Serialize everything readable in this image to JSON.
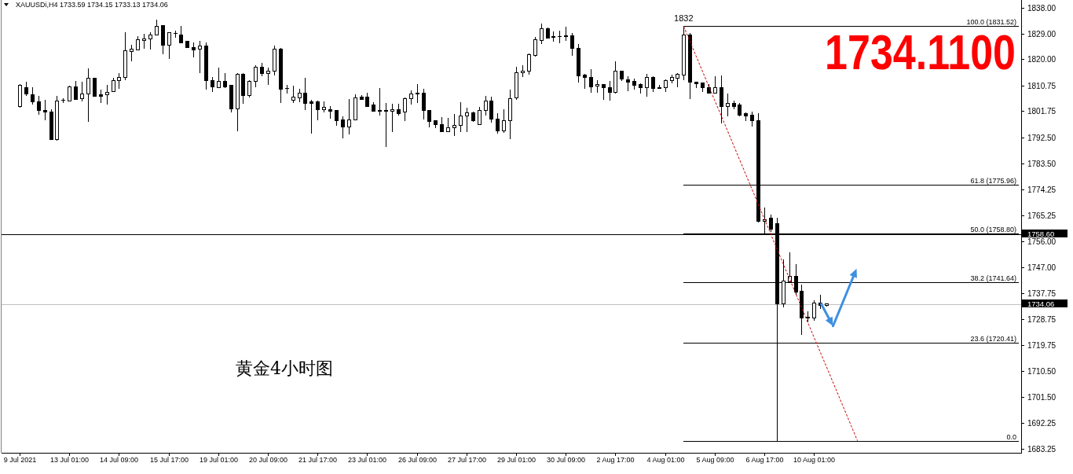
{
  "chart_data": {
    "type": "candlestick",
    "title": "XAUUSDi,H4 1733.59 1734.15 1733.13 1734.06",
    "annotations": [
      {
        "text": "1832",
        "y": 1831.52
      },
      "黄金4小时图",
      "1734.1100"
    ],
    "categories": [
      "9 Jul 2021",
      null,
      null,
      null,
      null,
      null,
      null,
      null,
      "13 Jul 01:00",
      null,
      null,
      null,
      null,
      null,
      null,
      null,
      "14 Jul 09:00",
      null,
      null,
      null,
      null,
      null,
      null,
      null,
      "15 Jul 17:00",
      null,
      null,
      null,
      null,
      null,
      null,
      null,
      "19 Jul 01:00",
      null,
      null,
      null,
      null,
      null,
      null,
      null,
      "20 Jul 09:00",
      null,
      null,
      null,
      null,
      null,
      null,
      null,
      "21 Jul 17:00",
      null,
      null,
      null,
      null,
      null,
      null,
      null,
      "23 Jul 01:00",
      null,
      null,
      null,
      null,
      null,
      null,
      null,
      "26 Jul 09:00",
      null,
      null,
      null,
      null,
      null,
      null,
      null,
      "27 Jul 17:00",
      null,
      null,
      null,
      null,
      null,
      null,
      null,
      "29 Jul 01:00",
      null,
      null,
      null,
      null,
      null,
      null,
      null,
      "30 Jul 09:00",
      null,
      null,
      null,
      null,
      null,
      null,
      null,
      "2 Aug 17:00",
      null,
      null,
      null,
      null,
      null,
      null,
      null,
      "4 Aug 01:00",
      null,
      null,
      null,
      null,
      null,
      null,
      null,
      "5 Aug 09:00",
      null,
      null,
      null,
      null,
      null,
      null,
      null,
      "6 Aug 17:00",
      null,
      null,
      null,
      null,
      null,
      null,
      null,
      "10 Aug 01:00",
      null,
      null,
      null,
      null,
      null,
      null,
      null,
      null,
      null,
      null,
      null,
      null,
      null,
      null,
      null,
      null,
      null,
      null,
      null,
      null,
      null,
      null,
      null,
      null,
      null,
      null,
      null,
      null,
      null,
      null,
      null,
      null,
      null
    ],
    "ylim": [
      1681.86,
      1840.76
    ],
    "yticks": [
      {
        "value": 1838,
        "label": "1838.00"
      },
      {
        "value": 1829,
        "label": "1829.00"
      },
      {
        "value": 1820,
        "label": "1820.00"
      },
      {
        "value": 1810.75,
        "label": "1810.75"
      },
      {
        "value": 1801.75,
        "label": "1801.75"
      },
      {
        "value": 1792.5,
        "label": "1792.50"
      },
      {
        "value": 1783.5,
        "label": "1783.50"
      },
      {
        "value": 1774.25,
        "label": "1774.25"
      },
      {
        "value": 1765.25,
        "label": "1765.25"
      },
      {
        "value": 1756,
        "label": "1756.00"
      },
      {
        "value": 1747,
        "label": "1747.00"
      },
      {
        "value": 1737.75,
        "label": "1737.75"
      },
      {
        "value": 1728.75,
        "label": "1728.75"
      },
      {
        "value": 1719.75,
        "label": "1719.75"
      },
      {
        "value": 1710.5,
        "label": "1710.50"
      },
      {
        "value": 1701.5,
        "label": "1701.50"
      },
      {
        "value": 1692.25,
        "label": "1692.25"
      },
      {
        "value": 1683.25,
        "label": "1683.25"
      }
    ],
    "ref_lines": [
      {
        "axis": "y",
        "value": 1758.6,
        "label": "1758.60",
        "color": "#000000"
      },
      {
        "axis": "y",
        "value": 1734.06,
        "label": "1734.06",
        "color": "#c0c0c0"
      }
    ],
    "series": [
      {
        "color": "#000000",
        "ohlc": [
          [
            1803.5,
            1811.3,
            1803.1,
            1810.9
          ],
          [
            1810.1,
            1812.0,
            1807.2,
            1807.9
          ],
          [
            1807.4,
            1810.2,
            1804.0,
            1805.1
          ],
          [
            1805.1,
            1807.0,
            1800.5,
            1802.1
          ],
          [
            1802.1,
            1805.8,
            1798.5,
            1801.4
          ],
          [
            1801.5,
            1802.3,
            1791.6,
            1791.7
          ],
          [
            1791.7,
            1807.0,
            1791.3,
            1805.4
          ],
          [
            1805.7,
            1806.3,
            1804.7,
            1805.5
          ],
          [
            1805.4,
            1810.8,
            1805.3,
            1810.4
          ],
          [
            1810.4,
            1812.4,
            1805.6,
            1806.0
          ],
          [
            1806.1,
            1812.1,
            1805.1,
            1807.9
          ],
          [
            1807.9,
            1816.7,
            1798.0,
            1813.4
          ],
          [
            1813.4,
            1813.5,
            1806.8,
            1806.9
          ],
          [
            1807.4,
            1809.3,
            1804.7,
            1806.9
          ],
          [
            1807.5,
            1810.9,
            1804.2,
            1808.4
          ],
          [
            1808.6,
            1813.4,
            1808.4,
            1812.5
          ],
          [
            1812.4,
            1815.0,
            1809.5,
            1813.6
          ],
          [
            1813.5,
            1829.5,
            1812.7,
            1823.1
          ],
          [
            1822.8,
            1825.0,
            1819.2,
            1823.5
          ],
          [
            1823.3,
            1828.1,
            1823.3,
            1826.9
          ],
          [
            1826.5,
            1828.8,
            1823.7,
            1827.2
          ],
          [
            1827.2,
            1829.5,
            1823.3,
            1828.6
          ],
          [
            1828.5,
            1833.9,
            1828.5,
            1831.6
          ],
          [
            1831.7,
            1831.9,
            1821.7,
            1824.8
          ],
          [
            1825.0,
            1829.5,
            1820.0,
            1829.2
          ],
          [
            1829.1,
            1830.0,
            1827.4,
            1829.0
          ],
          [
            1828.6,
            1831.7,
            1825.8,
            1825.8
          ],
          [
            1826.2,
            1826.2,
            1824.0,
            1824.0
          ],
          [
            1824.2,
            1825.8,
            1820.5,
            1823.3
          ],
          [
            1823.6,
            1826.3,
            1815.0,
            1824.7
          ],
          [
            1824.7,
            1825.8,
            1809.3,
            1812.5
          ],
          [
            1812.5,
            1813.6,
            1808.6,
            1810.2
          ],
          [
            1810.0,
            1817.0,
            1809.8,
            1812.3
          ],
          [
            1812.3,
            1815.0,
            1809.8,
            1810.4
          ],
          [
            1810.7,
            1810.9,
            1801.4,
            1802.6
          ],
          [
            1802.6,
            1815.2,
            1794.6,
            1814.8
          ],
          [
            1814.8,
            1815.0,
            1804.4,
            1807.2
          ],
          [
            1807.3,
            1812.7,
            1806.5,
            1812.3
          ],
          [
            1812.3,
            1817.8,
            1810.2,
            1817.2
          ],
          [
            1817.3,
            1818.7,
            1814.1,
            1815.0
          ],
          [
            1815.0,
            1817.0,
            1811.1,
            1815.9
          ],
          [
            1815.9,
            1824.7,
            1814.3,
            1823.5
          ],
          [
            1823.5,
            1823.9,
            1804.7,
            1809.5
          ],
          [
            1809.8,
            1810.9,
            1807.9,
            1809.6
          ],
          [
            1805.6,
            1810.6,
            1804.7,
            1806.6
          ],
          [
            1806.5,
            1809.5,
            1804.9,
            1808.1
          ],
          [
            1808.1,
            1813.5,
            1802.1,
            1804.4
          ],
          [
            1804.9,
            1805.8,
            1793.9,
            1804.5
          ],
          [
            1804.9,
            1805.4,
            1798.5,
            1802.3
          ],
          [
            1802.3,
            1805.1,
            1801.4,
            1803.0
          ],
          [
            1802.4,
            1803.5,
            1799.1,
            1801.7
          ],
          [
            1801.9,
            1801.9,
            1796.6,
            1798.4
          ],
          [
            1798.6,
            1799.9,
            1792.3,
            1796.2
          ],
          [
            1796.2,
            1806.0,
            1793.7,
            1798.8
          ],
          [
            1798.6,
            1807.7,
            1798.5,
            1806.5
          ],
          [
            1806.6,
            1807.5,
            1805.8,
            1806.0
          ],
          [
            1806.8,
            1808.1,
            1803.5,
            1803.5
          ],
          [
            1803.8,
            1804.9,
            1801.7,
            1801.7
          ],
          [
            1802.1,
            1809.8,
            1800.3,
            1801.8
          ],
          [
            1802.1,
            1804.6,
            1789.3,
            1801.8
          ],
          [
            1801.8,
            1804.3,
            1794.5,
            1802.4
          ],
          [
            1802.4,
            1804.3,
            1800.3,
            1801.0
          ],
          [
            1801.5,
            1806.5,
            1798.2,
            1806.2
          ],
          [
            1806.2,
            1809.0,
            1804.0,
            1807.9
          ],
          [
            1808.2,
            1811.2,
            1804.7,
            1807.9
          ],
          [
            1808.2,
            1809.5,
            1798.9,
            1802.0
          ],
          [
            1802.1,
            1802.1,
            1796.2,
            1798.2
          ],
          [
            1798.3,
            1798.3,
            1795.9,
            1797.0
          ],
          [
            1796.9,
            1799.6,
            1794.5,
            1794.5
          ],
          [
            1794.5,
            1799.4,
            1794.3,
            1796.0
          ],
          [
            1795.9,
            1800.8,
            1793.1,
            1796.8
          ],
          [
            1796.8,
            1804.9,
            1794.5,
            1800.2
          ],
          [
            1800.1,
            1803.1,
            1794.3,
            1801.2
          ],
          [
            1801.2,
            1801.5,
            1798.0,
            1798.3
          ],
          [
            1797.1,
            1803.2,
            1797.1,
            1802.1
          ],
          [
            1802.1,
            1807.2,
            1800.3,
            1805.2
          ],
          [
            1805.2,
            1806.8,
            1797.7,
            1798.9
          ],
          [
            1799.1,
            1801.0,
            1793.9,
            1794.8
          ],
          [
            1794.8,
            1802.3,
            1794.1,
            1798.5
          ],
          [
            1798.4,
            1809.3,
            1792.0,
            1806.2
          ],
          [
            1806.3,
            1817.3,
            1805.8,
            1815.3
          ],
          [
            1815.3,
            1817.8,
            1813.8,
            1815.9
          ],
          [
            1815.9,
            1821.9,
            1814.6,
            1821.5
          ],
          [
            1821.3,
            1827.9,
            1821.0,
            1826.7
          ],
          [
            1826.5,
            1832.5,
            1825.4,
            1830.8
          ],
          [
            1830.8,
            1831.1,
            1827.3,
            1827.3
          ],
          [
            1827.8,
            1829.7,
            1826.2,
            1827.7
          ],
          [
            1828.0,
            1829.9,
            1825.6,
            1827.8
          ],
          [
            1828.2,
            1831.3,
            1826.5,
            1828.0
          ],
          [
            1828.1,
            1829.3,
            1821.3,
            1823.7
          ],
          [
            1823.9,
            1825.3,
            1811.8,
            1814.1
          ],
          [
            1814.3,
            1814.8,
            1809.7,
            1813.5
          ],
          [
            1813.5,
            1816.4,
            1808.1,
            1810.4
          ],
          [
            1810.6,
            1812.7,
            1808.1,
            1811.2
          ],
          [
            1811.2,
            1811.2,
            1805.8,
            1810.0
          ],
          [
            1810.1,
            1812.3,
            1805.4,
            1808.3
          ],
          [
            1808.3,
            1819.2,
            1807.9,
            1815.7
          ],
          [
            1815.7,
            1815.9,
            1812.3,
            1813.0
          ],
          [
            1812.7,
            1814.1,
            1808.8,
            1811.8
          ],
          [
            1812.1,
            1813.2,
            1809.2,
            1810.8
          ],
          [
            1811.1,
            1811.6,
            1807.9,
            1810.0
          ],
          [
            1810.0,
            1814.8,
            1806.8,
            1813.5
          ],
          [
            1813.5,
            1813.9,
            1808.4,
            1809.7
          ],
          [
            1809.9,
            1810.9,
            1809.5,
            1809.8
          ],
          [
            1810.0,
            1813.0,
            1808.6,
            1812.5
          ],
          [
            1812.5,
            1814.6,
            1811.5,
            1813.5
          ],
          [
            1813.4,
            1815.0,
            1810.2,
            1814.6
          ],
          [
            1814.4,
            1831.52,
            1812.7,
            1828.5
          ],
          [
            1828.5,
            1829.1,
            1806.1,
            1812.0
          ],
          [
            1812.0,
            1812.0,
            1810.0,
            1811.3
          ],
          [
            1811.7,
            1811.7,
            1808.6,
            1810.0
          ],
          [
            1810.0,
            1811.3,
            1808.1,
            1808.1
          ],
          [
            1808.1,
            1814.1,
            1808.1,
            1810.0
          ],
          [
            1810.0,
            1814.4,
            1797.4,
            1803.3
          ],
          [
            1803.3,
            1807.9,
            1800.0,
            1804.4
          ],
          [
            1804.4,
            1805.4,
            1802.3,
            1803.5
          ],
          [
            1804.0,
            1804.6,
            1799.9,
            1800.3
          ],
          [
            1800.8,
            1801.4,
            1798.3,
            1800.0
          ],
          [
            1800.3,
            1801.7,
            1796.3,
            1798.3
          ],
          [
            1798.5,
            1801.0,
            1762.8,
            1763.1
          ],
          [
            1763.1,
            1767.9,
            1758.9,
            1763.7
          ],
          [
            1764.2,
            1765.4,
            1759.4,
            1760.3
          ],
          [
            1762.4,
            1764.4,
            1686.1,
            1734.1
          ],
          [
            1734.1,
            1749.7,
            1733.0,
            1742.2
          ],
          [
            1741.9,
            1752.2,
            1741.5,
            1743.7
          ],
          [
            1743.7,
            1748.2,
            1737.3,
            1738.2
          ],
          [
            1738.5,
            1740.8,
            1723.3,
            1729.3
          ],
          [
            1729.5,
            1731.5,
            1727.7,
            1729.3
          ],
          [
            1729.3,
            1735.5,
            1728.3,
            1734.3
          ],
          [
            1734.3,
            1737.3,
            1732.4,
            1733.7
          ],
          [
            1733.59,
            1734.15,
            1733.13,
            1734.06
          ],
          null,
          null,
          null,
          null,
          null,
          null,
          null,
          null,
          null,
          null,
          null,
          null,
          null,
          null,
          null,
          null,
          null,
          null,
          null,
          null,
          null,
          null,
          null,
          null,
          null,
          null,
          null,
          null,
          null,
          null,
          null
        ]
      },
      {
        "type": "line",
        "name": "100.0 (1831.52)",
        "color": "#000000",
        "values": [
          null,
          null,
          null,
          null,
          null,
          null,
          null,
          null,
          null,
          null,
          null,
          null,
          null,
          null,
          null,
          null,
          null,
          null,
          null,
          null,
          null,
          null,
          null,
          null,
          null,
          null,
          null,
          null,
          null,
          null,
          null,
          null,
          null,
          null,
          null,
          null,
          null,
          null,
          null,
          null,
          null,
          null,
          null,
          null,
          null,
          null,
          null,
          null,
          null,
          null,
          null,
          null,
          null,
          null,
          null,
          null,
          null,
          null,
          null,
          null,
          null,
          null,
          null,
          null,
          null,
          null,
          null,
          null,
          null,
          null,
          null,
          null,
          null,
          null,
          null,
          null,
          null,
          null,
          null,
          null,
          null,
          null,
          null,
          null,
          null,
          null,
          null,
          null,
          null,
          null,
          null,
          null,
          null,
          null,
          null,
          null,
          null,
          null,
          null,
          null,
          null,
          null,
          null,
          null,
          null,
          null,
          null,
          1831.52,
          1831.52,
          1831.52,
          1831.52,
          1831.52,
          1831.52,
          1831.52,
          1831.52,
          1831.52,
          1831.52,
          1831.52,
          1831.52,
          1831.52,
          1831.52,
          1831.52,
          1831.52,
          1831.52,
          1831.52,
          1831.52,
          1831.52,
          1831.52,
          1831.52,
          1831.52,
          1831.52,
          1831.52,
          1831.52,
          1831.52,
          1831.52,
          1831.52,
          1831.52,
          1831.52,
          1831.52,
          1831.52,
          1831.52,
          1831.52,
          1831.52,
          1831.52,
          1831.52,
          1831.52,
          1831.52,
          1831.52,
          1831.52,
          1831.52,
          1831.52,
          1831.52,
          1831.52,
          1831.52,
          1831.52,
          1831.52,
          1831.52,
          1831.52,
          1831.52,
          1831.52,
          1831.52,
          1831.52
        ]
      },
      {
        "type": "line",
        "name": "61.8 (1775.96)",
        "color": "#000000",
        "values": [
          null,
          null,
          null,
          null,
          null,
          null,
          null,
          null,
          null,
          null,
          null,
          null,
          null,
          null,
          null,
          null,
          null,
          null,
          null,
          null,
          null,
          null,
          null,
          null,
          null,
          null,
          null,
          null,
          null,
          null,
          null,
          null,
          null,
          null,
          null,
          null,
          null,
          null,
          null,
          null,
          null,
          null,
          null,
          null,
          null,
          null,
          null,
          null,
          null,
          null,
          null,
          null,
          null,
          null,
          null,
          null,
          null,
          null,
          null,
          null,
          null,
          null,
          null,
          null,
          null,
          null,
          null,
          null,
          null,
          null,
          null,
          null,
          null,
          null,
          null,
          null,
          null,
          null,
          null,
          null,
          null,
          null,
          null,
          null,
          null,
          null,
          null,
          null,
          null,
          null,
          null,
          null,
          null,
          null,
          null,
          null,
          null,
          null,
          null,
          null,
          null,
          null,
          null,
          null,
          null,
          null,
          null,
          1775.96,
          1775.96,
          1775.96,
          1775.96,
          1775.96,
          1775.96,
          1775.96,
          1775.96,
          1775.96,
          1775.96,
          1775.96,
          1775.96,
          1775.96,
          1775.96,
          1775.96,
          1775.96,
          1775.96,
          1775.96,
          1775.96,
          1775.96,
          1775.96,
          1775.96,
          1775.96,
          1775.96,
          1775.96,
          1775.96,
          1775.96,
          1775.96,
          1775.96,
          1775.96,
          1775.96,
          1775.96,
          1775.96,
          1775.96,
          1775.96,
          1775.96,
          1775.96,
          1775.96,
          1775.96,
          1775.96,
          1775.96,
          1775.96,
          1775.96,
          1775.96,
          1775.96,
          1775.96,
          1775.96,
          1775.96,
          1775.96,
          1775.96,
          1775.96,
          1775.96,
          1775.96,
          1775.96,
          1775.96
        ]
      },
      {
        "type": "line",
        "name": "50.0 (1758.80)",
        "color": "#000000",
        "values": [
          null,
          null,
          null,
          null,
          null,
          null,
          null,
          null,
          null,
          null,
          null,
          null,
          null,
          null,
          null,
          null,
          null,
          null,
          null,
          null,
          null,
          null,
          null,
          null,
          null,
          null,
          null,
          null,
          null,
          null,
          null,
          null,
          null,
          null,
          null,
          null,
          null,
          null,
          null,
          null,
          null,
          null,
          null,
          null,
          null,
          null,
          null,
          null,
          null,
          null,
          null,
          null,
          null,
          null,
          null,
          null,
          null,
          null,
          null,
          null,
          null,
          null,
          null,
          null,
          null,
          null,
          null,
          null,
          null,
          null,
          null,
          null,
          null,
          null,
          null,
          null,
          null,
          null,
          null,
          null,
          null,
          null,
          null,
          null,
          null,
          null,
          null,
          null,
          null,
          null,
          null,
          null,
          null,
          null,
          null,
          null,
          null,
          null,
          null,
          null,
          null,
          null,
          null,
          null,
          null,
          null,
          null,
          1758.8,
          1758.8,
          1758.8,
          1758.8,
          1758.8,
          1758.8,
          1758.8,
          1758.8,
          1758.8,
          1758.8,
          1758.8,
          1758.8,
          1758.8,
          1758.8,
          1758.8,
          1758.8,
          1758.8,
          1758.8,
          1758.8,
          1758.8,
          1758.8,
          1758.8,
          1758.8,
          1758.8,
          1758.8,
          1758.8,
          1758.8,
          1758.8,
          1758.8,
          1758.8,
          1758.8,
          1758.8,
          1758.8,
          1758.8,
          1758.8,
          1758.8,
          1758.8,
          1758.8,
          1758.8,
          1758.8,
          1758.8,
          1758.8,
          1758.8,
          1758.8,
          1758.8,
          1758.8,
          1758.8,
          1758.8,
          1758.8,
          1758.8,
          1758.8,
          1758.8,
          1758.8,
          1758.8,
          1758.8
        ]
      },
      {
        "type": "line",
        "name": "38.2 (1741.64)",
        "color": "#000000",
        "values": [
          null,
          null,
          null,
          null,
          null,
          null,
          null,
          null,
          null,
          null,
          null,
          null,
          null,
          null,
          null,
          null,
          null,
          null,
          null,
          null,
          null,
          null,
          null,
          null,
          null,
          null,
          null,
          null,
          null,
          null,
          null,
          null,
          null,
          null,
          null,
          null,
          null,
          null,
          null,
          null,
          null,
          null,
          null,
          null,
          null,
          null,
          null,
          null,
          null,
          null,
          null,
          null,
          null,
          null,
          null,
          null,
          null,
          null,
          null,
          null,
          null,
          null,
          null,
          null,
          null,
          null,
          null,
          null,
          null,
          null,
          null,
          null,
          null,
          null,
          null,
          null,
          null,
          null,
          null,
          null,
          null,
          null,
          null,
          null,
          null,
          null,
          null,
          null,
          null,
          null,
          null,
          null,
          null,
          null,
          null,
          null,
          null,
          null,
          null,
          null,
          null,
          null,
          null,
          null,
          null,
          null,
          null,
          1741.64,
          1741.64,
          1741.64,
          1741.64,
          1741.64,
          1741.64,
          1741.64,
          1741.64,
          1741.64,
          1741.64,
          1741.64,
          1741.64,
          1741.64,
          1741.64,
          1741.64,
          1741.64,
          1741.64,
          1741.64,
          1741.64,
          1741.64,
          1741.64,
          1741.64,
          1741.64,
          1741.64,
          1741.64,
          1741.64,
          1741.64,
          1741.64,
          1741.64,
          1741.64,
          1741.64,
          1741.64,
          1741.64,
          1741.64,
          1741.64,
          1741.64,
          1741.64,
          1741.64,
          1741.64,
          1741.64,
          1741.64,
          1741.64,
          1741.64,
          1741.64,
          1741.64,
          1741.64,
          1741.64,
          1741.64,
          1741.64,
          1741.64,
          1741.64,
          1741.64,
          1741.64,
          1741.64,
          1741.64
        ]
      },
      {
        "type": "line",
        "name": "23.6 (1720.41)",
        "color": "#000000",
        "values": [
          null,
          null,
          null,
          null,
          null,
          null,
          null,
          null,
          null,
          null,
          null,
          null,
          null,
          null,
          null,
          null,
          null,
          null,
          null,
          null,
          null,
          null,
          null,
          null,
          null,
          null,
          null,
          null,
          null,
          null,
          null,
          null,
          null,
          null,
          null,
          null,
          null,
          null,
          null,
          null,
          null,
          null,
          null,
          null,
          null,
          null,
          null,
          null,
          null,
          null,
          null,
          null,
          null,
          null,
          null,
          null,
          null,
          null,
          null,
          null,
          null,
          null,
          null,
          null,
          null,
          null,
          null,
          null,
          null,
          null,
          null,
          null,
          null,
          null,
          null,
          null,
          null,
          null,
          null,
          null,
          null,
          null,
          null,
          null,
          null,
          null,
          null,
          null,
          null,
          null,
          null,
          null,
          null,
          null,
          null,
          null,
          null,
          null,
          null,
          null,
          null,
          null,
          null,
          null,
          null,
          null,
          null,
          1720.41,
          1720.41,
          1720.41,
          1720.41,
          1720.41,
          1720.41,
          1720.41,
          1720.41,
          1720.41,
          1720.41,
          1720.41,
          1720.41,
          1720.41,
          1720.41,
          1720.41,
          1720.41,
          1720.41,
          1720.41,
          1720.41,
          1720.41,
          1720.41,
          1720.41,
          1720.41,
          1720.41,
          1720.41,
          1720.41,
          1720.41,
          1720.41,
          1720.41,
          1720.41,
          1720.41,
          1720.41,
          1720.41,
          1720.41,
          1720.41,
          1720.41,
          1720.41,
          1720.41,
          1720.41,
          1720.41,
          1720.41,
          1720.41,
          1720.41,
          1720.41,
          1720.41,
          1720.41,
          1720.41,
          1720.41,
          1720.41,
          1720.41,
          1720.41,
          1720.41,
          1720.41,
          1720.41,
          1720.41
        ]
      },
      {
        "type": "line",
        "name": "0.0",
        "color": "#000000",
        "values": [
          null,
          null,
          null,
          null,
          null,
          null,
          null,
          null,
          null,
          null,
          null,
          null,
          null,
          null,
          null,
          null,
          null,
          null,
          null,
          null,
          null,
          null,
          null,
          null,
          null,
          null,
          null,
          null,
          null,
          null,
          null,
          null,
          null,
          null,
          null,
          null,
          null,
          null,
          null,
          null,
          null,
          null,
          null,
          null,
          null,
          null,
          null,
          null,
          null,
          null,
          null,
          null,
          null,
          null,
          null,
          null,
          null,
          null,
          null,
          null,
          null,
          null,
          null,
          null,
          null,
          null,
          null,
          null,
          null,
          null,
          null,
          null,
          null,
          null,
          null,
          null,
          null,
          null,
          null,
          null,
          null,
          null,
          null,
          null,
          null,
          null,
          null,
          null,
          null,
          null,
          null,
          null,
          null,
          null,
          null,
          null,
          null,
          null,
          null,
          null,
          null,
          null,
          null,
          null,
          null,
          null,
          null,
          1686.1,
          1686.1,
          1686.1,
          1686.1,
          1686.1,
          1686.1,
          1686.1,
          1686.1,
          1686.1,
          1686.1,
          1686.1,
          1686.1,
          1686.1,
          1686.1,
          1686.1,
          1686.1,
          1686.1,
          1686.1,
          1686.1,
          1686.1,
          1686.1,
          1686.1,
          1686.1,
          1686.1,
          1686.1,
          1686.1,
          1686.1,
          1686.1,
          1686.1,
          1686.1,
          1686.1,
          1686.1,
          1686.1,
          1686.1,
          1686.1,
          1686.1,
          1686.1,
          1686.1,
          1686.1,
          1686.1,
          1686.1,
          1686.1,
          1686.1,
          1686.1,
          1686.1,
          1686.1,
          1686.1,
          1686.1,
          1686.1,
          1686.1,
          1686.1,
          1686.1,
          1686.1,
          1686.1,
          1686.1
        ]
      },
      {
        "type": "line",
        "color": "#cc0000",
        "line_style": "dashed",
        "values": [
          null,
          null,
          null,
          null,
          null,
          null,
          null,
          null,
          null,
          null,
          null,
          null,
          null,
          null,
          null,
          null,
          null,
          null,
          null,
          null,
          null,
          null,
          null,
          null,
          null,
          null,
          null,
          null,
          null,
          null,
          null,
          null,
          null,
          null,
          null,
          null,
          null,
          null,
          null,
          null,
          null,
          null,
          null,
          null,
          null,
          null,
          null,
          null,
          null,
          null,
          null,
          null,
          null,
          null,
          null,
          null,
          null,
          null,
          null,
          null,
          null,
          null,
          null,
          null,
          null,
          null,
          null,
          null,
          null,
          null,
          null,
          null,
          null,
          null,
          null,
          null,
          null,
          null,
          null,
          null,
          null,
          null,
          null,
          null,
          null,
          null,
          null,
          null,
          null,
          null,
          null,
          null,
          null,
          null,
          null,
          null,
          null,
          null,
          null,
          null,
          null,
          null,
          null,
          null,
          null,
          null,
          null,
          1831.5,
          1826.3,
          1821.1,
          1815.9,
          1810.7,
          1805.5,
          1800.4,
          1795.2,
          1790.0,
          1784.8,
          1779.6,
          1774.4,
          1769.2,
          1764.0,
          1758.8,
          1753.6,
          1748.4,
          1743.2,
          1738.0,
          1732.8,
          1727.6,
          1722.4,
          1717.2,
          1712.1,
          1706.9,
          1701.7,
          1696.5,
          1691.3,
          1686.1,
          null,
          null,
          null,
          null,
          null,
          null,
          null,
          null,
          null,
          null,
          null,
          null,
          null,
          null,
          null,
          null,
          null,
          null,
          null,
          null,
          null,
          null,
          null,
          null,
          null,
          null
        ]
      }
    ]
  }
}
